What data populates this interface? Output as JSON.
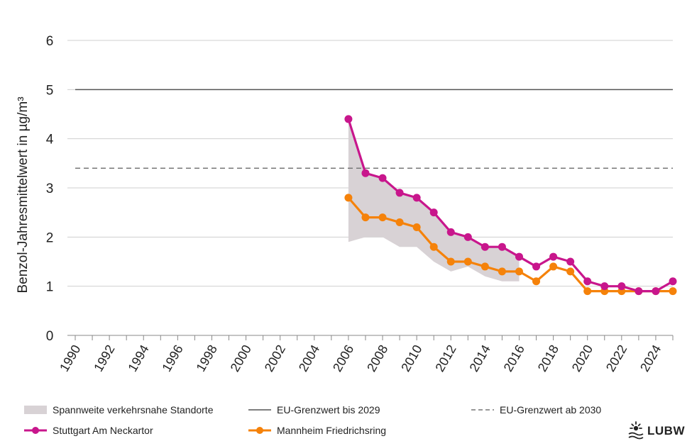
{
  "chart_data": {
    "type": "line",
    "ylabel": "Benzol-Jahresmittelwert  in µg/m³",
    "xlabel": "",
    "xlim": [
      1990,
      2025
    ],
    "ylim": [
      0,
      6
    ],
    "yticks": [
      "0",
      "1",
      "2",
      "3",
      "4",
      "5",
      "6"
    ],
    "xticks": [
      "1990",
      "1992",
      "1994",
      "1996",
      "1998",
      "2000",
      "2002",
      "2004",
      "2006",
      "2008",
      "2010",
      "2012",
      "2014",
      "2016",
      "2018",
      "2020",
      "2022",
      "2024"
    ],
    "grid": true,
    "legend_position": "bottom",
    "range_band": {
      "name": "Spannweite verkehrsnahe Standorte",
      "color": "#d8d2d5",
      "x": [
        2006,
        2007,
        2008,
        2009,
        2010,
        2011,
        2012,
        2013,
        2014,
        2015,
        2016
      ],
      "low": [
        1.9,
        2.0,
        2.0,
        1.8,
        1.8,
        1.5,
        1.3,
        1.4,
        1.2,
        1.1,
        1.1
      ],
      "high": [
        4.4,
        3.3,
        3.2,
        2.9,
        2.8,
        2.5,
        2.1,
        2.0,
        1.8,
        1.8,
        1.6
      ]
    },
    "reference_lines": [
      {
        "name": "EU-Grenzwert bis 2029",
        "value": 5,
        "style": "solid",
        "color": "#555555"
      },
      {
        "name": "EU-Grenzwert ab 2030",
        "value": 3.4,
        "style": "dashed",
        "color": "#777777"
      }
    ],
    "series": [
      {
        "name": "Stuttgart Am Neckartor",
        "color": "#c8168c",
        "x": [
          2006,
          2007,
          2008,
          2009,
          2010,
          2011,
          2012,
          2013,
          2014,
          2015,
          2016,
          2017,
          2018,
          2019,
          2020,
          2021,
          2022,
          2023,
          2024,
          2025
        ],
        "values": [
          4.4,
          3.3,
          3.2,
          2.9,
          2.8,
          2.5,
          2.1,
          2.0,
          1.8,
          1.8,
          1.6,
          1.4,
          1.6,
          1.5,
          1.1,
          1.0,
          1.0,
          0.9,
          0.9,
          1.1
        ]
      },
      {
        "name": "Mannheim Friedrichsring",
        "color": "#f5820a",
        "x": [
          2006,
          2007,
          2008,
          2009,
          2010,
          2011,
          2012,
          2013,
          2014,
          2015,
          2016,
          2017,
          2018,
          2019,
          2020,
          2021,
          2022,
          2023,
          2024,
          2025
        ],
        "values": [
          2.8,
          2.4,
          2.4,
          2.3,
          2.2,
          1.8,
          1.5,
          1.5,
          1.4,
          1.3,
          1.3,
          1.1,
          1.4,
          1.3,
          0.9,
          0.9,
          0.9,
          0.9,
          0.9,
          0.9
        ]
      }
    ]
  },
  "legend": {
    "band_label": "Spannweite verkehrsnahe Standorte",
    "ref1_label": "EU-Grenzwert bis 2029",
    "ref2_label": "EU-Grenzwert ab 2030",
    "series1_label": "Stuttgart Am Neckartor",
    "series2_label": "Mannheim Friedrichsring"
  },
  "logo": {
    "text": "LUBW",
    "icon": "sun-waves-logo-icon"
  }
}
